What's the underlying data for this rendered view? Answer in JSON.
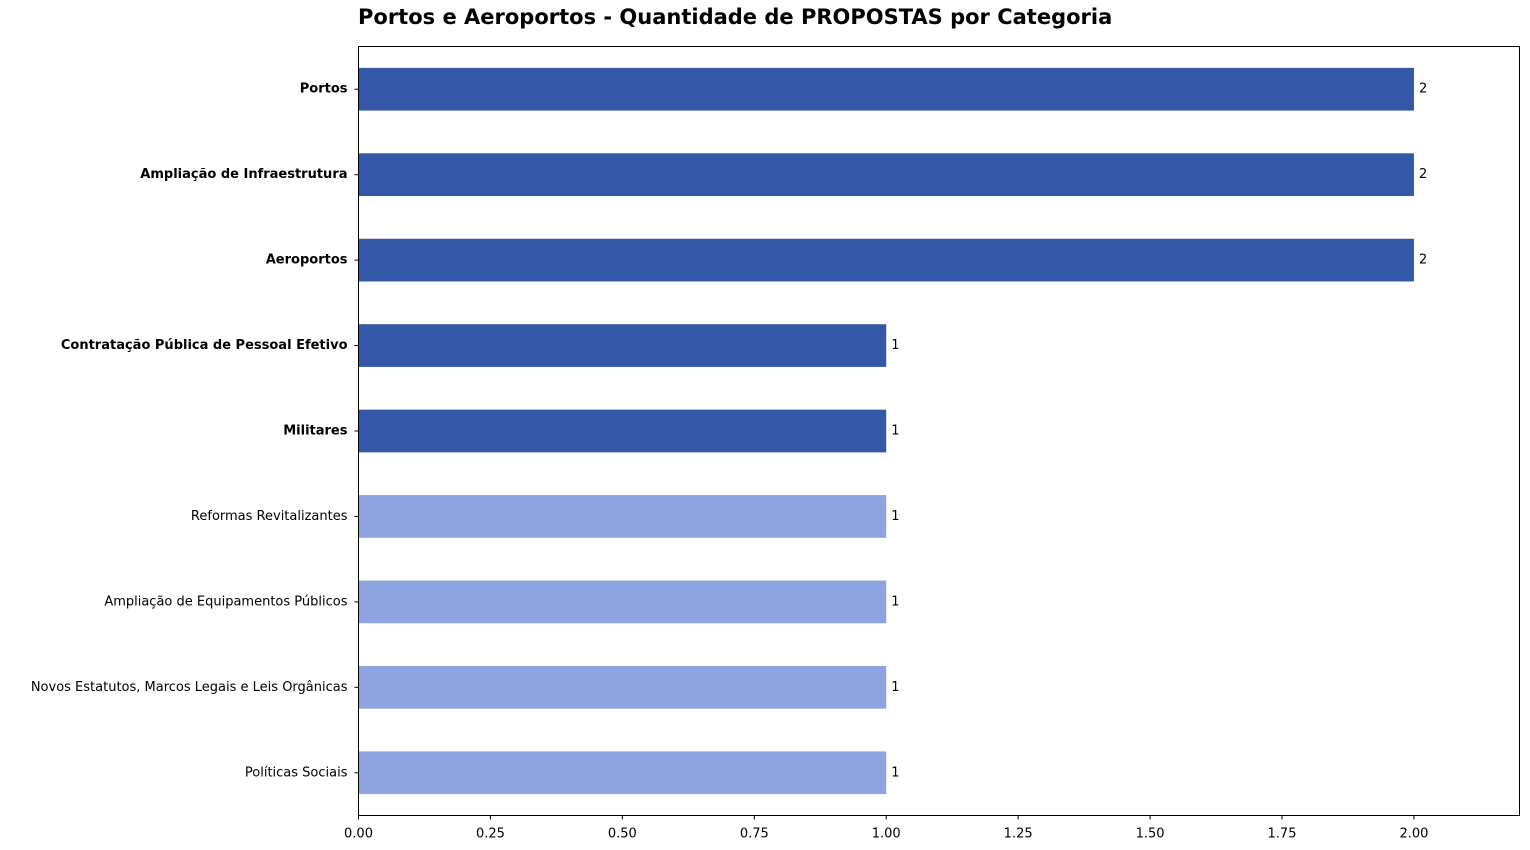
{
  "chart_data": {
    "type": "bar",
    "orientation": "horizontal",
    "title": "Portos e Aeroportos - Quantidade de PROPOSTAS por Categoria",
    "xlabel": "",
    "ylabel": "",
    "xlim": [
      0,
      2.2
    ],
    "xticks": [
      "0.00",
      "0.25",
      "0.50",
      "0.75",
      "1.00",
      "1.25",
      "1.50",
      "1.75",
      "2.00"
    ],
    "grid": false,
    "colors": {
      "highlight": "#3557a7",
      "normal": "#8da4e0"
    },
    "categories": [
      "Portos",
      "Ampliação de Infraestrutura",
      "Aeroportos",
      "Contratação Pública de Pessoal Efetivo",
      "Militares",
      "Reformas Revitalizantes",
      "Ampliação de Equipamentos Públicos",
      "Novos Estatutos, Marcos Legais e Leis Orgânicas",
      "Políticas Sociais"
    ],
    "values": [
      2,
      2,
      2,
      1,
      1,
      1,
      1,
      1,
      1
    ],
    "value_labels": [
      "2",
      "2",
      "2",
      "1",
      "1",
      "1",
      "1",
      "1",
      "1"
    ],
    "highlighted": [
      true,
      true,
      true,
      true,
      true,
      false,
      false,
      false,
      false
    ]
  }
}
